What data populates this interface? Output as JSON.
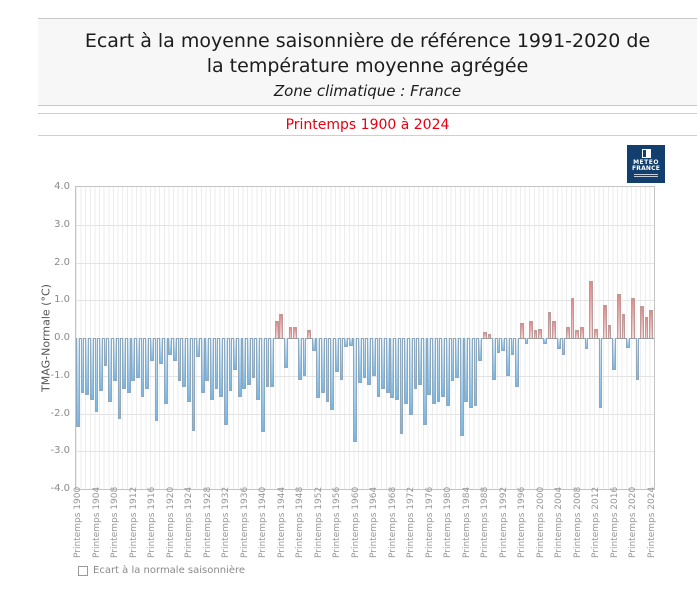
{
  "page": {
    "title_line1": "Ecart à la moyenne saisonnière  de référence 1991-2020  de",
    "title_line2": "la température moyenne  agrégée",
    "zone_label": "Zone climatique : France",
    "period_label": "Printemps 1900 à 2024"
  },
  "logo": {
    "line1": "METEO",
    "line2": "FRANCE"
  },
  "legend": {
    "label": "Ecart à la normale saisonnière"
  },
  "colors": {
    "period_text": "#e60012",
    "logo_background": "#123f6d",
    "bar_negative": "#74b6e8",
    "bar_positive": "#e28989",
    "panel_background": "#f7f7f7"
  },
  "chart_data": {
    "type": "bar",
    "title": "Ecart à la moyenne saisonnière de référence 1991-2020 de la température moyenne agrégée — Zone climatique : France — Printemps 1900 à 2024",
    "xlabel": "",
    "ylabel": "TMAG-Normale (°C)",
    "ylim": [
      -4.0,
      4.0
    ],
    "grid": true,
    "legend_position": "bottom-left",
    "y_ticks": [
      "4.0",
      "3.0",
      "2.0",
      "1.0",
      "0.0",
      "-1.0",
      "-2.0",
      "-3.0",
      "-4.0"
    ],
    "x_tick_labels": [
      "Printemps 1900",
      "Printemps 1904",
      "Printemps 1908",
      "Printemps 1912",
      "Printemps 1916",
      "Printemps 1920",
      "Printemps 1924",
      "Printemps 1928",
      "Printemps 1932",
      "Printemps 1936",
      "Printemps 1940",
      "Printemps 1944",
      "Printemps 1948",
      "Printemps 1952",
      "Printemps 1956",
      "Printemps 1960",
      "Printemps 1964",
      "Printemps 1968",
      "Printemps 1972",
      "Printemps 1976",
      "Printemps 1980",
      "Printemps 1984",
      "Printemps 1988",
      "Printemps 1992",
      "Printemps 1996",
      "Printemps 2000",
      "Printemps 2004",
      "Printemps 2008",
      "Printemps 2012",
      "Printemps 2016",
      "Printemps 2020",
      "Printemps 2024"
    ],
    "x": [
      1900,
      1901,
      1902,
      1903,
      1904,
      1905,
      1906,
      1907,
      1908,
      1909,
      1910,
      1911,
      1912,
      1913,
      1914,
      1915,
      1916,
      1917,
      1918,
      1919,
      1920,
      1921,
      1922,
      1923,
      1924,
      1925,
      1926,
      1927,
      1928,
      1929,
      1930,
      1931,
      1932,
      1933,
      1934,
      1935,
      1936,
      1937,
      1938,
      1939,
      1940,
      1941,
      1942,
      1943,
      1944,
      1945,
      1946,
      1947,
      1948,
      1949,
      1950,
      1951,
      1952,
      1953,
      1954,
      1955,
      1956,
      1957,
      1958,
      1959,
      1960,
      1961,
      1962,
      1963,
      1964,
      1965,
      1966,
      1967,
      1968,
      1969,
      1970,
      1971,
      1972,
      1973,
      1974,
      1975,
      1976,
      1977,
      1978,
      1979,
      1980,
      1981,
      1982,
      1983,
      1984,
      1985,
      1986,
      1987,
      1988,
      1989,
      1990,
      1991,
      1992,
      1993,
      1994,
      1995,
      1996,
      1997,
      1998,
      1999,
      2000,
      2001,
      2002,
      2003,
      2004,
      2005,
      2006,
      2007,
      2008,
      2009,
      2010,
      2011,
      2012,
      2013,
      2014,
      2015,
      2016,
      2017,
      2018,
      2019,
      2020,
      2021,
      2022,
      2023,
      2024
    ],
    "values": [
      -2.35,
      -1.45,
      -1.5,
      -1.65,
      -1.95,
      -1.4,
      -0.75,
      -1.7,
      -1.15,
      -2.15,
      -1.35,
      -1.45,
      -1.15,
      -1.05,
      -1.55,
      -1.35,
      -0.6,
      -2.2,
      -0.7,
      -1.75,
      -0.45,
      -0.6,
      -1.15,
      -1.3,
      -1.7,
      -2.45,
      -0.5,
      -1.45,
      -1.15,
      -1.65,
      -1.35,
      -1.55,
      -2.3,
      -1.4,
      -0.85,
      -1.55,
      -1.35,
      -1.25,
      -1.05,
      -1.65,
      -2.5,
      -1.3,
      -1.3,
      0.45,
      0.65,
      -0.8,
      0.3,
      0.3,
      -1.1,
      -1.0,
      0.2,
      -0.35,
      -1.6,
      -1.45,
      -1.7,
      -1.9,
      -0.9,
      -1.1,
      -0.25,
      -0.2,
      -2.75,
      -1.2,
      -1.05,
      -1.25,
      -1.0,
      -1.55,
      -1.35,
      -1.45,
      -1.6,
      -1.65,
      -2.55,
      -1.75,
      -2.05,
      -1.35,
      -1.25,
      -2.3,
      -1.5,
      -1.75,
      -1.7,
      -1.55,
      -1.8,
      -1.15,
      -1.05,
      -2.6,
      -1.7,
      -1.85,
      -1.8,
      -0.6,
      0.15,
      0.1,
      -1.1,
      -0.4,
      -0.35,
      -1.0,
      -0.45,
      -1.3,
      0.4,
      -0.15,
      0.45,
      0.2,
      0.25,
      -0.15,
      0.7,
      0.45,
      -0.3,
      -0.45,
      0.3,
      1.05,
      0.2,
      0.3,
      -0.3,
      1.5,
      0.25,
      -1.85,
      0.87,
      0.35,
      -0.85,
      1.18,
      0.65,
      -0.27,
      1.05,
      -1.1,
      0.85,
      0.55,
      0.75
    ]
  }
}
